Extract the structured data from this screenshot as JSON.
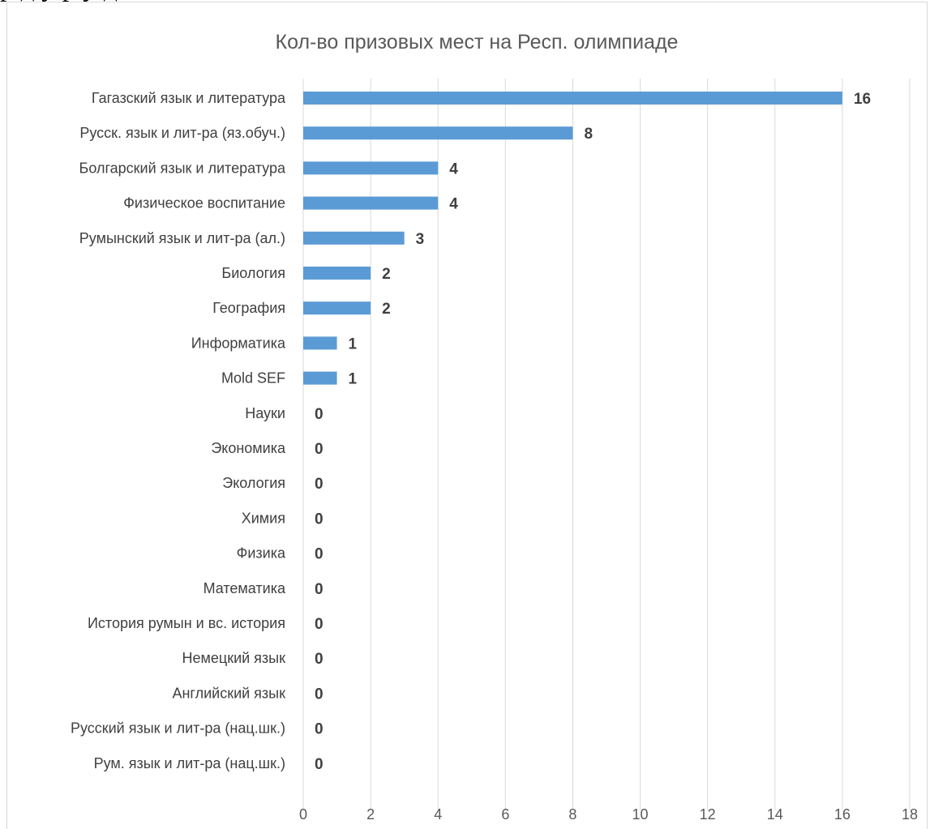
{
  "chart_data": {
    "type": "bar",
    "orientation": "horizontal",
    "title": "Кол-во призовых мест на Респ. олимпиаде",
    "categories": [
      "Гагазский язык и литература",
      "Русск. язык и лит-ра (яз.обуч.)",
      "Болгарский язык и литература",
      "Физическое воспитание",
      "Румынский язык и лит-ра (ал.)",
      "Биология",
      "География",
      "Информатика",
      "Mold SEF",
      "Науки",
      "Экономика",
      "Экология",
      "Химия",
      "Физика",
      "Математика",
      "История румын и вс. история",
      "Немецкий язык",
      "Английский язык",
      "Русский язык и лит-ра (нац.шк.)",
      "Рум. язык и лит-ра  (нац.шк.)"
    ],
    "values": [
      16,
      8,
      4,
      4,
      3,
      2,
      2,
      1,
      1,
      0,
      0,
      0,
      0,
      0,
      0,
      0,
      0,
      0,
      0,
      0
    ],
    "xlim": [
      0,
      18
    ],
    "x_ticks": [
      0,
      2,
      4,
      6,
      8,
      10,
      12,
      14,
      16,
      18
    ],
    "grid": "vertical",
    "data_labels": true,
    "legend": "none",
    "bar_color": "#5b9bd5"
  }
}
